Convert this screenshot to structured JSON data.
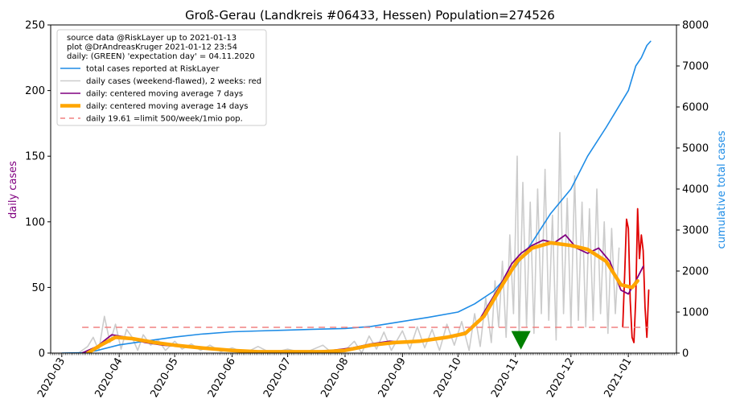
{
  "chart_data": {
    "type": "line",
    "title": "Groß-Gerau (Landkreis #06433, Hessen) Population=274526",
    "ylabel_left": "daily cases",
    "ylabel_right": "cumulative total cases",
    "ylim_left": [
      0,
      250
    ],
    "ylim_right": [
      0,
      8000
    ],
    "yticks_left": [
      0,
      50,
      100,
      150,
      200,
      250
    ],
    "yticks_right": [
      0,
      1000,
      2000,
      3000,
      4000,
      5000,
      6000,
      7000,
      8000
    ],
    "x_start": "2020-02-24",
    "x_end": "2021-01-27",
    "x_ticks": [
      {
        "label": "2020-03",
        "date": "2020-03-01"
      },
      {
        "label": "2020-04",
        "date": "2020-04-01"
      },
      {
        "label": "2020-05",
        "date": "2020-05-01"
      },
      {
        "label": "2020-06",
        "date": "2020-06-01"
      },
      {
        "label": "2020-07",
        "date": "2020-07-01"
      },
      {
        "label": "2020-08",
        "date": "2020-08-01"
      },
      {
        "label": "2020-09",
        "date": "2020-09-01"
      },
      {
        "label": "2020-10",
        "date": "2020-10-01"
      },
      {
        "label": "2020-11",
        "date": "2020-11-01"
      },
      {
        "label": "2020-12",
        "date": "2020-12-01"
      },
      {
        "label": "2021-01",
        "date": "2021-01-01"
      }
    ],
    "legend_placement": "top-left",
    "legend_header": [
      "source data @RiskLayer up to 2021-01-13",
      "plot @DrAndreasKruger 2021-01-12 23:54",
      "daily: (GREEN) 'expectation day' = 04.11.2020"
    ],
    "legend": [
      {
        "label": "total cases reported at RiskLayer",
        "color": "#1e8ce6",
        "style": "solid",
        "width": 1.6
      },
      {
        "label": "daily cases (weekend-flawed), 2 weeks: red",
        "color": "#cccccc",
        "style": "solid",
        "width": 1.6
      },
      {
        "label": "daily: centered moving average 7 days",
        "color": "#800080",
        "style": "solid",
        "width": 1.6
      },
      {
        "label": "daily: centered moving average 14 days",
        "color": "#ffa500",
        "style": "solid",
        "width": 4.5
      },
      {
        "label": "daily 19.61 =limit 500/week/1mio pop.",
        "color": "#f08080",
        "style": "dashed",
        "width": 1.6
      }
    ],
    "limit_line": {
      "value": 19.61,
      "x_from": "2020-03-12",
      "x_to": "2021-01-12",
      "color": "#f08080"
    },
    "expectation_marker": {
      "date": "2020-11-04",
      "value": 10,
      "color": "#008000"
    },
    "series": [
      {
        "name": "total cases reported at RiskLayer",
        "axis": "right",
        "color": "#1e8ce6",
        "points": [
          [
            "2020-03-01",
            0
          ],
          [
            "2020-03-12",
            10
          ],
          [
            "2020-03-20",
            60
          ],
          [
            "2020-04-01",
            200
          ],
          [
            "2020-04-15",
            290
          ],
          [
            "2020-05-01",
            390
          ],
          [
            "2020-05-15",
            460
          ],
          [
            "2020-06-01",
            520
          ],
          [
            "2020-06-15",
            540
          ],
          [
            "2020-07-01",
            560
          ],
          [
            "2020-07-15",
            580
          ],
          [
            "2020-08-01",
            600
          ],
          [
            "2020-08-15",
            650
          ],
          [
            "2020-09-01",
            770
          ],
          [
            "2020-09-15",
            870
          ],
          [
            "2020-10-01",
            1000
          ],
          [
            "2020-10-10",
            1200
          ],
          [
            "2020-10-20",
            1500
          ],
          [
            "2020-11-01",
            2100
          ],
          [
            "2020-11-10",
            2700
          ],
          [
            "2020-11-20",
            3400
          ],
          [
            "2020-12-01",
            4000
          ],
          [
            "2020-12-10",
            4800
          ],
          [
            "2020-12-20",
            5500
          ],
          [
            "2021-01-01",
            6400
          ],
          [
            "2021-01-05",
            7000
          ],
          [
            "2021-01-08",
            7200
          ],
          [
            "2021-01-11",
            7500
          ],
          [
            "2021-01-13",
            7600
          ]
        ]
      },
      {
        "name": "daily cases (weekend-flawed), 2 weeks: red",
        "axis": "left",
        "color": "#cccccc",
        "points": [
          [
            "2020-03-10",
            0
          ],
          [
            "2020-03-15",
            5
          ],
          [
            "2020-03-18",
            12
          ],
          [
            "2020-03-21",
            2
          ],
          [
            "2020-03-24",
            28
          ],
          [
            "2020-03-27",
            8
          ],
          [
            "2020-03-30",
            22
          ],
          [
            "2020-04-02",
            3
          ],
          [
            "2020-04-05",
            18
          ],
          [
            "2020-04-08",
            12
          ],
          [
            "2020-04-11",
            2
          ],
          [
            "2020-04-14",
            14
          ],
          [
            "2020-04-18",
            6
          ],
          [
            "2020-04-22",
            10
          ],
          [
            "2020-04-26",
            2
          ],
          [
            "2020-05-01",
            9
          ],
          [
            "2020-05-05",
            3
          ],
          [
            "2020-05-10",
            7
          ],
          [
            "2020-05-15",
            2
          ],
          [
            "2020-05-20",
            6
          ],
          [
            "2020-05-26",
            1
          ],
          [
            "2020-06-01",
            4
          ],
          [
            "2020-06-08",
            0
          ],
          [
            "2020-06-15",
            5
          ],
          [
            "2020-06-22",
            0
          ],
          [
            "2020-07-01",
            3
          ],
          [
            "2020-07-10",
            0
          ],
          [
            "2020-07-20",
            6
          ],
          [
            "2020-07-25",
            0
          ],
          [
            "2020-08-01",
            2
          ],
          [
            "2020-08-06",
            9
          ],
          [
            "2020-08-10",
            0
          ],
          [
            "2020-08-14",
            13
          ],
          [
            "2020-08-18",
            3
          ],
          [
            "2020-08-22",
            16
          ],
          [
            "2020-08-26",
            2
          ],
          [
            "2020-09-01",
            17
          ],
          [
            "2020-09-05",
            3
          ],
          [
            "2020-09-09",
            20
          ],
          [
            "2020-09-13",
            4
          ],
          [
            "2020-09-17",
            18
          ],
          [
            "2020-09-21",
            2
          ],
          [
            "2020-09-25",
            22
          ],
          [
            "2020-09-29",
            6
          ],
          [
            "2020-10-03",
            24
          ],
          [
            "2020-10-07",
            2
          ],
          [
            "2020-10-10",
            30
          ],
          [
            "2020-10-13",
            5
          ],
          [
            "2020-10-16",
            42
          ],
          [
            "2020-10-19",
            8
          ],
          [
            "2020-10-21",
            55
          ],
          [
            "2020-10-23",
            20
          ],
          [
            "2020-10-25",
            70
          ],
          [
            "2020-10-27",
            12
          ],
          [
            "2020-10-29",
            90
          ],
          [
            "2020-10-31",
            30
          ],
          [
            "2020-11-02",
            150
          ],
          [
            "2020-11-03",
            10
          ],
          [
            "2020-11-05",
            130
          ],
          [
            "2020-11-07",
            20
          ],
          [
            "2020-11-09",
            115
          ],
          [
            "2020-11-11",
            15
          ],
          [
            "2020-11-13",
            125
          ],
          [
            "2020-11-15",
            30
          ],
          [
            "2020-11-17",
            140
          ],
          [
            "2020-11-19",
            25
          ],
          [
            "2020-11-21",
            105
          ],
          [
            "2020-11-23",
            10
          ],
          [
            "2020-11-25",
            168
          ],
          [
            "2020-11-27",
            30
          ],
          [
            "2020-11-29",
            118
          ],
          [
            "2020-12-01",
            20
          ],
          [
            "2020-12-03",
            135
          ],
          [
            "2020-12-05",
            25
          ],
          [
            "2020-12-07",
            115
          ],
          [
            "2020-12-09",
            20
          ],
          [
            "2020-12-11",
            110
          ],
          [
            "2020-12-13",
            25
          ],
          [
            "2020-12-15",
            125
          ],
          [
            "2020-12-17",
            30
          ],
          [
            "2020-12-19",
            100
          ],
          [
            "2020-12-21",
            15
          ],
          [
            "2020-12-23",
            95
          ],
          [
            "2020-12-25",
            30
          ],
          [
            "2020-12-27",
            80
          ]
        ]
      },
      {
        "name": "daily cases last 2 weeks",
        "axis": "left",
        "color": "#e00000",
        "points": [
          [
            "2020-12-29",
            20
          ],
          [
            "2020-12-30",
            60
          ],
          [
            "2020-12-31",
            102
          ],
          [
            "2021-01-01",
            95
          ],
          [
            "2021-01-02",
            40
          ],
          [
            "2021-01-03",
            12
          ],
          [
            "2021-01-04",
            8
          ],
          [
            "2021-01-05",
            42
          ],
          [
            "2021-01-06",
            110
          ],
          [
            "2021-01-07",
            72
          ],
          [
            "2021-01-08",
            90
          ],
          [
            "2021-01-09",
            78
          ],
          [
            "2021-01-10",
            35
          ],
          [
            "2021-01-11",
            12
          ],
          [
            "2021-01-12",
            48
          ]
        ]
      },
      {
        "name": "daily: centered moving average 7 days",
        "axis": "left",
        "color": "#800080",
        "points": [
          [
            "2020-03-12",
            0
          ],
          [
            "2020-03-20",
            5
          ],
          [
            "2020-03-28",
            14
          ],
          [
            "2020-04-05",
            12
          ],
          [
            "2020-04-15",
            8
          ],
          [
            "2020-04-25",
            6
          ],
          [
            "2020-05-05",
            5
          ],
          [
            "2020-05-20",
            3
          ],
          [
            "2020-06-05",
            2
          ],
          [
            "2020-06-20",
            1
          ],
          [
            "2020-07-10",
            1
          ],
          [
            "2020-07-25",
            2
          ],
          [
            "2020-08-05",
            4
          ],
          [
            "2020-08-15",
            7
          ],
          [
            "2020-08-25",
            9
          ],
          [
            "2020-09-05",
            8
          ],
          [
            "2020-09-15",
            10
          ],
          [
            "2020-09-25",
            12
          ],
          [
            "2020-10-05",
            16
          ],
          [
            "2020-10-12",
            24
          ],
          [
            "2020-10-18",
            38
          ],
          [
            "2020-10-24",
            52
          ],
          [
            "2020-10-30",
            68
          ],
          [
            "2020-11-04",
            76
          ],
          [
            "2020-11-10",
            82
          ],
          [
            "2020-11-16",
            86
          ],
          [
            "2020-11-22",
            84
          ],
          [
            "2020-11-28",
            90
          ],
          [
            "2020-12-04",
            80
          ],
          [
            "2020-12-10",
            76
          ],
          [
            "2020-12-16",
            80
          ],
          [
            "2020-12-22",
            70
          ],
          [
            "2020-12-28",
            48
          ],
          [
            "2021-01-01",
            45
          ],
          [
            "2021-01-05",
            55
          ],
          [
            "2021-01-09",
            66
          ]
        ]
      },
      {
        "name": "daily: centered moving average 14 days",
        "axis": "left",
        "color": "#ffa500",
        "points": [
          [
            "2020-03-15",
            0
          ],
          [
            "2020-03-22",
            6
          ],
          [
            "2020-03-30",
            12
          ],
          [
            "2020-04-08",
            11
          ],
          [
            "2020-04-20",
            8
          ],
          [
            "2020-05-01",
            6
          ],
          [
            "2020-05-15",
            4
          ],
          [
            "2020-06-01",
            2
          ],
          [
            "2020-06-15",
            1
          ],
          [
            "2020-07-01",
            1
          ],
          [
            "2020-07-20",
            1
          ],
          [
            "2020-08-01",
            2
          ],
          [
            "2020-08-15",
            6
          ],
          [
            "2020-08-28",
            8
          ],
          [
            "2020-09-10",
            9
          ],
          [
            "2020-09-25",
            12
          ],
          [
            "2020-10-05",
            15
          ],
          [
            "2020-10-15",
            28
          ],
          [
            "2020-10-25",
            52
          ],
          [
            "2020-11-02",
            70
          ],
          [
            "2020-11-10",
            80
          ],
          [
            "2020-11-20",
            84
          ],
          [
            "2020-12-01",
            82
          ],
          [
            "2020-12-10",
            79
          ],
          [
            "2020-12-20",
            70
          ],
          [
            "2020-12-28",
            52
          ],
          [
            "2021-01-03",
            50
          ],
          [
            "2021-01-06",
            55
          ]
        ]
      }
    ]
  }
}
